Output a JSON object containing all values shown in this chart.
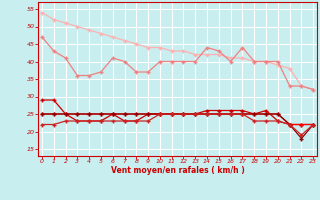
{
  "x": [
    0,
    1,
    2,
    3,
    4,
    5,
    6,
    7,
    8,
    9,
    10,
    11,
    12,
    13,
    14,
    15,
    16,
    17,
    18,
    19,
    20,
    21,
    22,
    23
  ],
  "line_top": [
    54,
    52,
    51,
    50,
    49,
    48,
    47,
    46,
    45,
    44,
    44,
    43,
    43,
    42,
    42,
    42,
    41,
    41,
    40,
    40,
    39,
    38,
    33,
    32
  ],
  "line_mid_pink": [
    47,
    43,
    41,
    36,
    36,
    37,
    41,
    40,
    37,
    37,
    40,
    40,
    40,
    40,
    44,
    43,
    40,
    44,
    40,
    40,
    40,
    33,
    33,
    32
  ],
  "line_dark1": [
    29,
    29,
    25,
    23,
    23,
    23,
    25,
    23,
    23,
    25,
    25,
    25,
    25,
    25,
    26,
    26,
    26,
    26,
    25,
    26,
    23,
    22,
    22,
    22
  ],
  "line_dark2": [
    25,
    25,
    25,
    25,
    25,
    25,
    25,
    25,
    25,
    25,
    25,
    25,
    25,
    25,
    25,
    25,
    25,
    25,
    25,
    25,
    25,
    22,
    22,
    22
  ],
  "line_dark3": [
    25,
    25,
    25,
    25,
    25,
    25,
    25,
    25,
    25,
    25,
    25,
    25,
    25,
    25,
    25,
    25,
    25,
    25,
    25,
    25,
    25,
    22,
    18,
    22
  ],
  "line_dark4": [
    22,
    22,
    23,
    23,
    23,
    23,
    23,
    23,
    23,
    23,
    25,
    25,
    25,
    25,
    25,
    25,
    25,
    25,
    23,
    23,
    23,
    22,
    19,
    22
  ],
  "color_top": "#ffb0b0",
  "color_mid_pink": "#f08080",
  "color_dark1": "#cc0000",
  "color_dark2": "#ff0000",
  "color_dark3": "#880000",
  "color_dark4": "#cc2222",
  "bg_color": "#c8eef0",
  "grid_color": "#aadddd",
  "axis_color": "#cc0000",
  "xlabel": "Vent moyen/en rafales ( km/h )",
  "ylim": [
    13,
    57
  ],
  "yticks": [
    15,
    20,
    25,
    30,
    35,
    40,
    45,
    50,
    55
  ],
  "xticks": [
    0,
    1,
    2,
    3,
    4,
    5,
    6,
    7,
    8,
    9,
    10,
    11,
    12,
    13,
    14,
    15,
    16,
    17,
    18,
    19,
    20,
    21,
    22,
    23
  ]
}
